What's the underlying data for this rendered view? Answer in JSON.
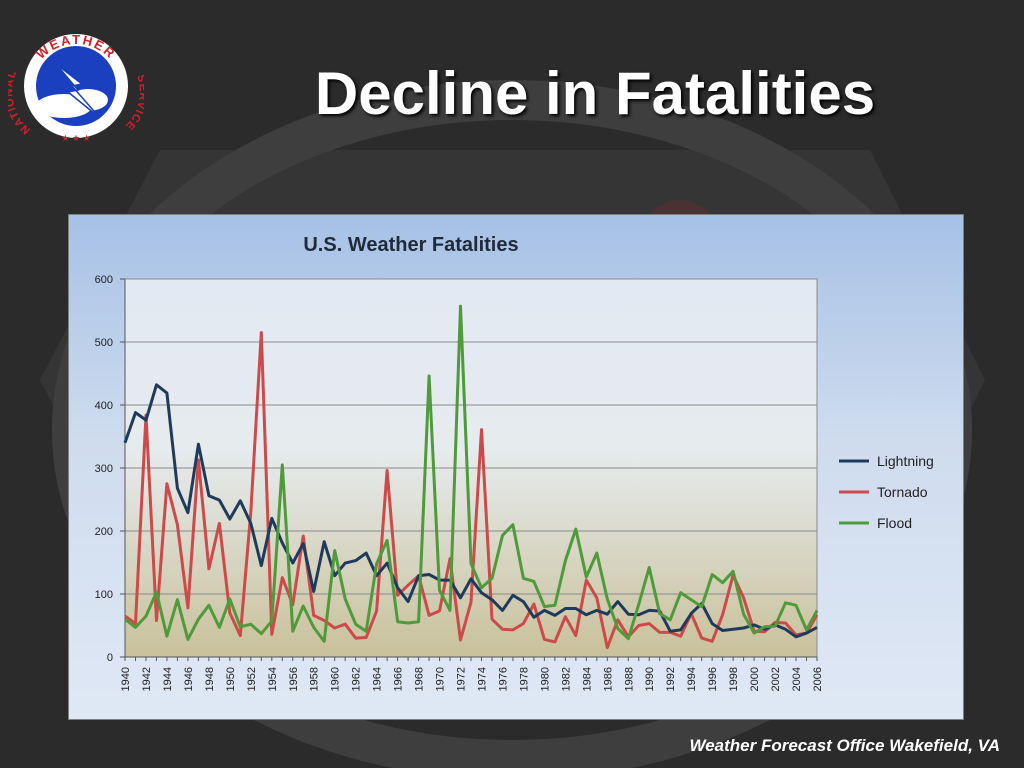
{
  "slide": {
    "title": "Decline in Fatalities",
    "footer": "Weather Forecast Office Wakefield, VA",
    "logo": {
      "icon": "national-weather-service-logo",
      "text_top": "WEATHER",
      "text_left": "NATIONAL",
      "text_right": "SERVICE"
    }
  },
  "colors": {
    "background": "#2b2b2b",
    "lightning": "#1f3b5c",
    "tornado": "#cc4a4a",
    "flood": "#4f9a3a",
    "plot_top": "#e2e9f3",
    "plot_bottom": "#c9c19a"
  },
  "chart_data": {
    "type": "line",
    "title": "U.S. Weather Fatalities",
    "xlabel": "",
    "ylabel": "",
    "ylim": [
      0,
      600
    ],
    "yticks": [
      0,
      100,
      200,
      300,
      400,
      500,
      600
    ],
    "xtick_labels": [
      "1940",
      "1942",
      "1944",
      "1946",
      "1948",
      "1950",
      "1952",
      "1954",
      "1956",
      "1958",
      "1960",
      "1962",
      "1964",
      "1966",
      "1968",
      "1970",
      "1972",
      "1974",
      "1976",
      "1978",
      "1980",
      "1982",
      "1984",
      "1986",
      "1988",
      "1990",
      "1992",
      "1994",
      "1996",
      "1998",
      "2000",
      "2002",
      "2004",
      "2006"
    ],
    "grid": true,
    "legend_position": "right",
    "x": [
      1940,
      1941,
      1942,
      1943,
      1944,
      1945,
      1946,
      1947,
      1948,
      1949,
      1950,
      1951,
      1952,
      1953,
      1954,
      1955,
      1956,
      1957,
      1958,
      1959,
      1960,
      1961,
      1962,
      1963,
      1964,
      1965,
      1966,
      1967,
      1968,
      1969,
      1970,
      1971,
      1972,
      1973,
      1974,
      1975,
      1976,
      1977,
      1978,
      1979,
      1980,
      1981,
      1982,
      1983,
      1984,
      1985,
      1986,
      1987,
      1988,
      1989,
      1990,
      1991,
      1992,
      1993,
      1994,
      1995,
      1996,
      1997,
      1998,
      1999,
      2000,
      2001,
      2002,
      2003,
      2004,
      2005,
      2006
    ],
    "series": [
      {
        "name": "Lightning",
        "values": [
          340,
          388,
          376,
          432,
          419,
          268,
          229,
          338,
          256,
          249,
          219,
          248,
          212,
          145,
          220,
          181,
          149,
          180,
          104,
          183,
          129,
          149,
          153,
          165,
          129,
          149,
          110,
          88,
          129,
          131,
          122,
          122,
          94,
          124,
          102,
          91,
          74,
          98,
          88,
          63,
          74,
          66,
          77,
          77,
          67,
          74,
          68,
          88,
          68,
          67,
          74,
          73,
          41,
          43,
          69,
          85,
          53,
          42,
          44,
          46,
          51,
          44,
          51,
          44,
          32,
          38,
          47
        ]
      },
      {
        "name": "Tornado",
        "values": [
          65,
          53,
          384,
          58,
          275,
          210,
          78,
          313,
          140,
          212,
          70,
          34,
          230,
          515,
          36,
          126,
          83,
          192,
          66,
          58,
          46,
          52,
          30,
          31,
          73,
          296,
          98,
          114,
          129,
          66,
          73,
          156,
          27,
          87,
          361,
          60,
          44,
          43,
          53,
          84,
          28,
          24,
          64,
          34,
          122,
          94,
          15,
          59,
          32,
          50,
          53,
          39,
          39,
          33,
          69,
          30,
          25,
          67,
          130,
          94,
          41,
          40,
          55,
          54,
          35,
          38,
          67
        ]
      },
      {
        "name": "Flood",
        "values": [
          60,
          47,
          65,
          103,
          33,
          91,
          28,
          60,
          82,
          47,
          92,
          48,
          52,
          37,
          57,
          305,
          41,
          81,
          47,
          25,
          169,
          92,
          52,
          41,
          148,
          185,
          56,
          54,
          56,
          446,
          106,
          74,
          557,
          148,
          110,
          125,
          193,
          210,
          125,
          120,
          80,
          82,
          153,
          203,
          127,
          165,
          92,
          45,
          29,
          84,
          142,
          69,
          59,
          102,
          91,
          80,
          131,
          118,
          136,
          68,
          38,
          48,
          49,
          86,
          82,
          43,
          74
        ]
      }
    ]
  }
}
